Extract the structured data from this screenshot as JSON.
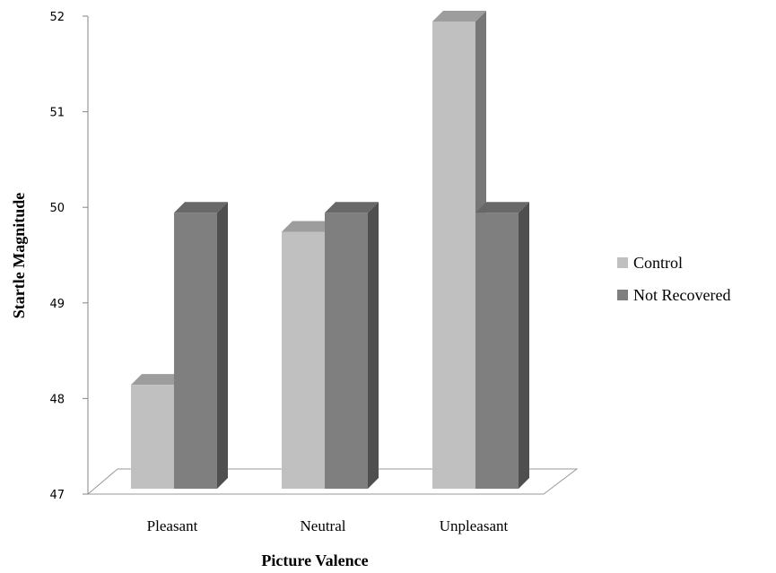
{
  "chart_data": {
    "type": "bar",
    "style": "3d-clustered-column",
    "title": "",
    "xlabel": "Picture Valence",
    "ylabel": "Startle Magnitude",
    "categories": [
      "Pleasant",
      "Neutral",
      "Unpleasant"
    ],
    "series": [
      {
        "name": "Control",
        "values": [
          48.2,
          49.8,
          52.0
        ],
        "color": "#c0c0c0"
      },
      {
        "name": "Not Recovered",
        "values": [
          50.0,
          50.0,
          50.0
        ],
        "color": "#7f7f7f"
      }
    ],
    "ylim": [
      47,
      52
    ],
    "yticks": [
      "47",
      "48",
      "49",
      "50",
      "51",
      "52"
    ],
    "grid": false,
    "legend": "right"
  }
}
